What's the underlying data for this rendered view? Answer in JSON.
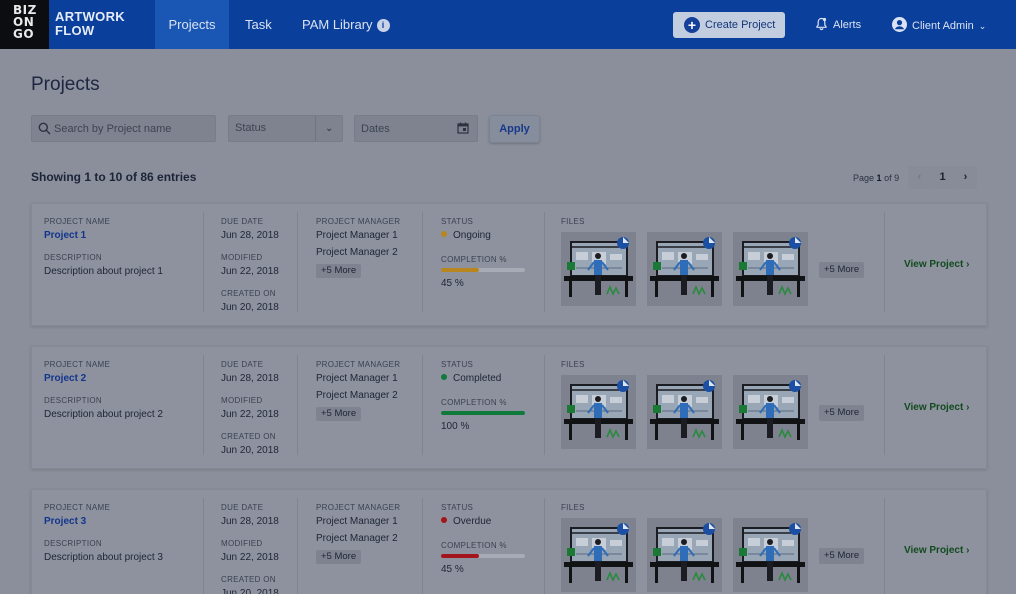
{
  "header": {
    "logo_lines": [
      "BIZ",
      "ON",
      "GO"
    ],
    "brand_line1": "ARTWORK",
    "brand_line2": "FLOW",
    "nav": [
      "Projects",
      "Task",
      "PAM Library"
    ],
    "create_label": "Create Project",
    "alerts_label": "Alerts",
    "user_label": "Client Admin"
  },
  "page": {
    "title": "Projects",
    "search_placeholder": "Search by Project name",
    "status_placeholder": "Status",
    "dates_placeholder": "Dates",
    "apply_label": "Apply",
    "showing": "Showing 1 to 10 of 86 entries",
    "page_prefix": "Page",
    "page_current": "1",
    "page_of": "of 9",
    "page_button": "1",
    "prev_glyph": "‹",
    "next_glyph": "›"
  },
  "labels": {
    "project_name": "PROJECT NAME",
    "description": "DESCRIPTION",
    "due_date": "DUE DATE",
    "modified": "MODIFIED",
    "created_on": "CREATED ON",
    "project_manager": "PROJECT MANAGER",
    "status": "STATUS",
    "completion": "COMPLETION %",
    "files": "FILES",
    "view_project": "View Project ›"
  },
  "projects": [
    {
      "name": "Project 1",
      "description": "Description about project 1",
      "due": "Jun 28, 2018",
      "modified": "Jun 22, 2018",
      "created": "Jun 20, 2018",
      "managers": [
        "Project Manager 1",
        "Project Manager 2"
      ],
      "managers_more": "+5 More",
      "status": "Ongoing",
      "status_color": "#b8861f",
      "completion_text": "45 %",
      "completion": 45,
      "bar_color": "#b8861f",
      "files_more": "+5 More"
    },
    {
      "name": "Project 2",
      "description": "Description about project 2",
      "due": "Jun 28, 2018",
      "modified": "Jun 22, 2018",
      "created": "Jun 20, 2018",
      "managers": [
        "Project Manager 1",
        "Project Manager 2"
      ],
      "managers_more": "+5 More",
      "status": "Completed",
      "status_color": "#0f7a3c",
      "completion_text": "100 %",
      "completion": 100,
      "bar_color": "#0f7a3c",
      "files_more": "+5 More"
    },
    {
      "name": "Project 3",
      "description": "Description about project 3",
      "due": "Jun 28, 2018",
      "modified": "Jun 22, 2018",
      "created": "Jun 20, 2018",
      "managers": [
        "Project Manager 1",
        "Project Manager 2"
      ],
      "managers_more": "+5 More",
      "status": "Overdue",
      "status_color": "#a3141c",
      "completion_text": "45 %",
      "completion": 45,
      "bar_color": "#a3141c",
      "files_more": "+5 More"
    }
  ]
}
